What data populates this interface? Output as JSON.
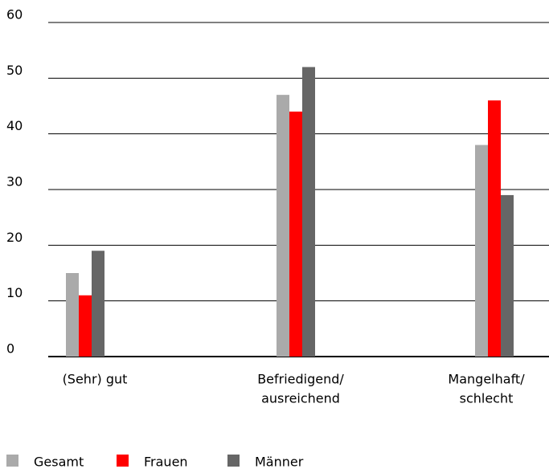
{
  "chart_data": {
    "type": "bar",
    "categories": [
      [
        "(Sehr) gut"
      ],
      [
        "Befriedigend/",
        "ausreichend"
      ],
      [
        "Mangelhaft/",
        "schlecht"
      ]
    ],
    "series": [
      {
        "name": "Gesamt",
        "color": "#aaaaaa",
        "values": [
          15,
          47,
          38
        ]
      },
      {
        "name": "Frauen",
        "color": "#ff0000",
        "values": [
          11,
          44,
          46
        ]
      },
      {
        "name": "Männer",
        "color": "#666666",
        "values": [
          19,
          52,
          29
        ]
      }
    ],
    "ylim": [
      0,
      60
    ],
    "yticks": [
      0,
      10,
      20,
      30,
      40,
      50,
      60
    ],
    "grid": true,
    "legend": "bottom"
  }
}
